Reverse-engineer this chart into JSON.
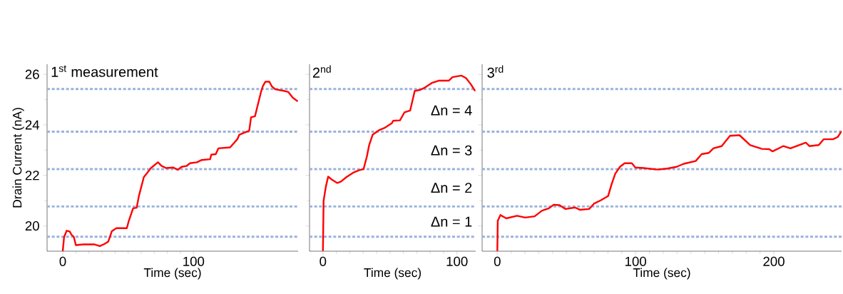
{
  "chart_data": [
    {
      "type": "line",
      "title": "1$^{st}$  measurement",
      "xlabel": "Time (sec)",
      "ylabel": "Drain Current (nA)",
      "xlim": [
        -12,
        180
      ],
      "xticks": [
        0,
        100
      ],
      "ylim": [
        19,
        26.4
      ],
      "yticks": [
        20,
        22,
        24,
        26
      ],
      "ref_lines": [
        {
          "axis": "y",
          "value": 25.42,
          "color": "#9bb3db",
          "line_style": "dashed"
        },
        {
          "axis": "y",
          "value": 23.73,
          "color": "#9bb3db",
          "line_style": "dashed"
        },
        {
          "axis": "y",
          "value": 22.25,
          "color": "#9bb3db",
          "line_style": "dashed"
        },
        {
          "axis": "y",
          "value": 20.77,
          "color": "#9bb3db",
          "line_style": "dashed"
        },
        {
          "axis": "y",
          "value": 19.57,
          "color": "#9bb3db",
          "line_style": "dashed"
        }
      ],
      "series": [
        {
          "color": "#ff0000",
          "x": [
            0,
            1,
            3,
            5.3,
            6.7,
            8.5,
            10,
            15.8,
            24,
            28.4,
            32,
            34.8,
            37.5,
            41,
            49,
            50.5,
            53.8,
            56.5,
            58.3,
            62,
            64.7,
            67.4,
            72.8,
            75.5,
            79,
            84.6,
            88,
            90.9,
            94.6,
            97.3,
            102.7,
            106.3,
            112.7,
            113.6,
            117,
            119,
            128,
            133.5,
            135,
            142.6,
            144,
            147,
            151.6,
            153,
            155,
            158,
            159.8,
            162.5,
            169.7,
            172.5,
            176,
            179.7
          ],
          "values": [
            19.0,
            19.56,
            19.81,
            19.78,
            19.65,
            19.56,
            19.24,
            19.27,
            19.27,
            19.2,
            19.29,
            19.38,
            19.79,
            19.91,
            19.91,
            20.2,
            20.7,
            20.72,
            21.2,
            21.93,
            22.11,
            22.29,
            22.52,
            22.38,
            22.29,
            22.31,
            22.22,
            22.34,
            22.37,
            22.48,
            22.52,
            22.61,
            22.64,
            22.82,
            22.84,
            23.07,
            23.11,
            23.43,
            23.61,
            23.77,
            24.3,
            24.34,
            25.3,
            25.53,
            25.71,
            25.71,
            25.53,
            25.41,
            25.34,
            25.3,
            25.07,
            24.93
          ]
        }
      ]
    },
    {
      "type": "line",
      "title": "2$^{nd}$",
      "xlabel": "Time (sec)",
      "xlim": [
        -10,
        114
      ],
      "xticks": [
        0,
        100
      ],
      "ylim": [
        19,
        26.4
      ],
      "yticks": [
        20,
        22,
        24,
        26
      ],
      "tick_labels": "x",
      "annotations": [
        "Δn = 4",
        "Δn = 3",
        "Δn = 2",
        "Δn = 1"
      ],
      "ref_lines": [
        {
          "axis": "y",
          "value": 25.42,
          "color": "#9bb3db",
          "line_style": "dashed"
        },
        {
          "axis": "y",
          "value": 23.73,
          "color": "#9bb3db",
          "line_style": "dashed"
        },
        {
          "axis": "y",
          "value": 22.25,
          "color": "#9bb3db",
          "line_style": "dashed"
        },
        {
          "axis": "y",
          "value": 20.77,
          "color": "#9bb3db",
          "line_style": "dashed"
        },
        {
          "axis": "y",
          "value": 19.57,
          "color": "#9bb3db",
          "line_style": "dashed"
        }
      ],
      "series": [
        {
          "color": "#ff0000",
          "x": [
            0,
            0.5,
            2.2,
            3.9,
            6.5,
            10.7,
            13.3,
            17.5,
            22.6,
            26.9,
            30.3,
            32.8,
            34.5,
            37.1,
            42.2,
            46.4,
            51.5,
            52.4,
            57.5,
            60.9,
            65.1,
            68.5,
            72.8,
            76.2,
            81.3,
            86.4,
            94,
            96.6,
            103.4,
            106.8,
            110.2,
            113.6
          ],
          "values": [
            19.01,
            21.0,
            21.56,
            21.95,
            21.84,
            21.7,
            21.75,
            21.93,
            22.11,
            22.2,
            22.25,
            22.75,
            23.2,
            23.61,
            23.8,
            23.89,
            24.07,
            24.16,
            24.18,
            24.5,
            24.57,
            25.34,
            25.39,
            25.48,
            25.66,
            25.75,
            25.75,
            25.89,
            25.95,
            25.85,
            25.62,
            25.34
          ]
        }
      ]
    },
    {
      "type": "line",
      "title": "3$^{rd}$",
      "xlabel": "Time (sec)",
      "xlim": [
        -11,
        249
      ],
      "xticks": [
        0,
        100,
        200
      ],
      "ylim": [
        19,
        26.4
      ],
      "yticks": [
        20,
        22,
        24,
        26
      ],
      "tick_labels": "x",
      "ref_lines": [
        {
          "axis": "y",
          "value": 25.42,
          "color": "#9bb3db",
          "line_style": "dashed"
        },
        {
          "axis": "y",
          "value": 23.73,
          "color": "#9bb3db",
          "line_style": "dashed"
        },
        {
          "axis": "y",
          "value": 22.25,
          "color": "#9bb3db",
          "line_style": "dashed"
        },
        {
          "axis": "y",
          "value": 20.77,
          "color": "#9bb3db",
          "line_style": "dashed"
        },
        {
          "axis": "y",
          "value": 19.57,
          "color": "#9bb3db",
          "line_style": "dashed"
        }
      ],
      "series": [
        {
          "color": "#ff0000",
          "x": [
            0,
            0.3,
            2.2,
            6.5,
            14.2,
            20.2,
            27,
            32.2,
            37.3,
            40.8,
            45,
            49.3,
            56.2,
            59.6,
            66.4,
            69.9,
            75,
            80.1,
            82.7,
            85.3,
            88.7,
            92.1,
            97.3,
            99.8,
            105.8,
            116,
            122.9,
            129.7,
            134.9,
            143.5,
            147.8,
            152.9,
            156.3,
            162.3,
            168.3,
            175.2,
            182.9,
            191.4,
            196.6,
            199.1,
            206.8,
            212,
            223.1,
            225.7,
            232.5,
            236,
            242.8,
            246.2,
            249
          ],
          "values": [
            19.01,
            20.2,
            20.43,
            20.3,
            20.4,
            20.33,
            20.38,
            20.6,
            20.7,
            20.84,
            20.82,
            20.67,
            20.73,
            20.64,
            20.67,
            20.88,
            21.02,
            21.18,
            21.66,
            22.07,
            22.34,
            22.48,
            22.48,
            22.31,
            22.29,
            22.23,
            22.27,
            22.34,
            22.46,
            22.57,
            22.84,
            22.89,
            23.07,
            23.16,
            23.57,
            23.59,
            23.2,
            23.05,
            23.04,
            22.95,
            23.16,
            23.07,
            23.3,
            23.16,
            23.2,
            23.43,
            23.43,
            23.52,
            23.75
          ]
        }
      ]
    }
  ]
}
